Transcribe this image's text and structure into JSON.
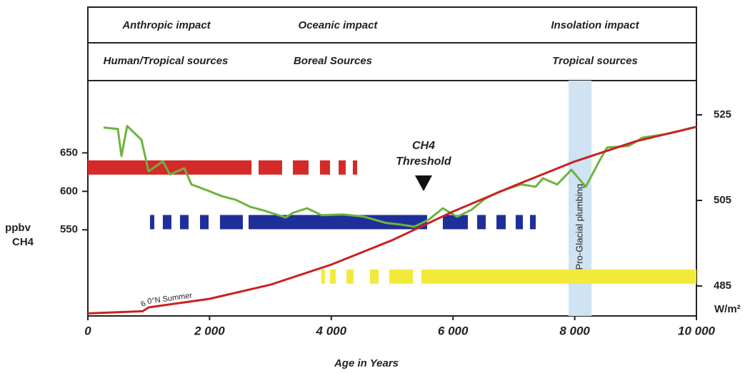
{
  "header": {
    "impacts": [
      "Anthropic impact",
      "Oceanic impact",
      "Insolation impact"
    ],
    "sources": [
      "Human/Tropical sources",
      "Boreal Sources",
      "Tropical sources"
    ]
  },
  "chart_data": {
    "type": "line",
    "xlabel": "Age in Years",
    "ylabel": [
      "ppbv",
      "CH4"
    ],
    "y2label": "W/m²",
    "xlim": [
      0,
      10000
    ],
    "xticks": [
      0,
      {
        "value": 2000,
        "label": "2 000"
      },
      {
        "value": 4000,
        "label": "4 000"
      },
      {
        "value": 6000,
        "label": "6 000"
      },
      {
        "value": 8000,
        "label": "8 000"
      },
      {
        "value": 10000,
        "label": "10 000"
      }
    ],
    "ylim": [
      438,
      744
    ],
    "yticks": [
      550,
      600,
      650
    ],
    "y2lim": [
      478,
      533
    ],
    "y2ticks": [
      485,
      505,
      525
    ],
    "series": [
      {
        "color": "#6db33f",
        "x": [
          258,
          493,
          552,
          646,
          880,
          998,
          1232,
          1350,
          1585,
          1702,
          1937,
          2195,
          2430,
          2665,
          2900,
          3251,
          3369,
          3603,
          3838,
          4190,
          4542,
          4894,
          5129,
          5364,
          5599,
          5833,
          6068,
          6303,
          6538,
          6772,
          7124,
          7359,
          7476,
          7711,
          7946,
          8181,
          8415,
          8533,
          8885,
          9120,
          9471,
          9706,
          9941
        ],
        "values": [
          683,
          681,
          646,
          685,
          667,
          626,
          639,
          622,
          630,
          609,
          602,
          594,
          589,
          580,
          575,
          566,
          572,
          578,
          569,
          570,
          567,
          559,
          557,
          554,
          563,
          578,
          567,
          576,
          591,
          600,
          609,
          606,
          617,
          609,
          628,
          606,
          641,
          657,
          659,
          670,
          674,
          678,
          683
        ]
      },
      {
        "name": "60°N Summer",
        "axis": "y2",
        "color": "#cc2020",
        "x": [
          0,
          900,
          1000,
          2000,
          3000,
          4000,
          5000,
          6000,
          7000,
          8000,
          9000,
          10000
        ],
        "values": [
          478.6,
          479.1,
          480.0,
          482.0,
          485.3,
          490.0,
          495.7,
          502.4,
          508.4,
          514.1,
          518.8,
          522.2
        ]
      }
    ],
    "bars": [
      {
        "color": "#d42a2a",
        "y": 631,
        "segments": [
          [
            0,
            2690
          ],
          [
            2805,
            3192
          ],
          [
            3369,
            3627
          ],
          [
            3814,
            3979
          ],
          [
            4120,
            4237
          ],
          [
            4354,
            4425
          ]
        ]
      },
      {
        "color": "#1f2f9a",
        "y": 560,
        "segments": [
          [
            1021,
            1092
          ],
          [
            1232,
            1373
          ],
          [
            1514,
            1655
          ],
          [
            1843,
            1984
          ],
          [
            2171,
            2547
          ],
          [
            2641,
            5575
          ],
          [
            5833,
            6244
          ],
          [
            6397,
            6538
          ],
          [
            6714,
            6866
          ],
          [
            7030,
            7148
          ],
          [
            7265,
            7359
          ]
        ]
      },
      {
        "color": "#f2ea3a",
        "axis": "y2",
        "y": 487.2,
        "segments": [
          [
            3838,
            3897
          ],
          [
            3979,
            4073
          ],
          [
            4249,
            4366
          ],
          [
            4636,
            4777
          ],
          [
            4953,
            5340
          ],
          [
            5481,
            10000
          ]
        ]
      }
    ],
    "band": {
      "xrange": [
        7899,
        8275
      ],
      "label": "Pro-Glacial plumbing",
      "color": "#cfe3f2"
    },
    "threshold": {
      "x": 5516,
      "label": [
        "CH4",
        "Threshold"
      ]
    }
  }
}
